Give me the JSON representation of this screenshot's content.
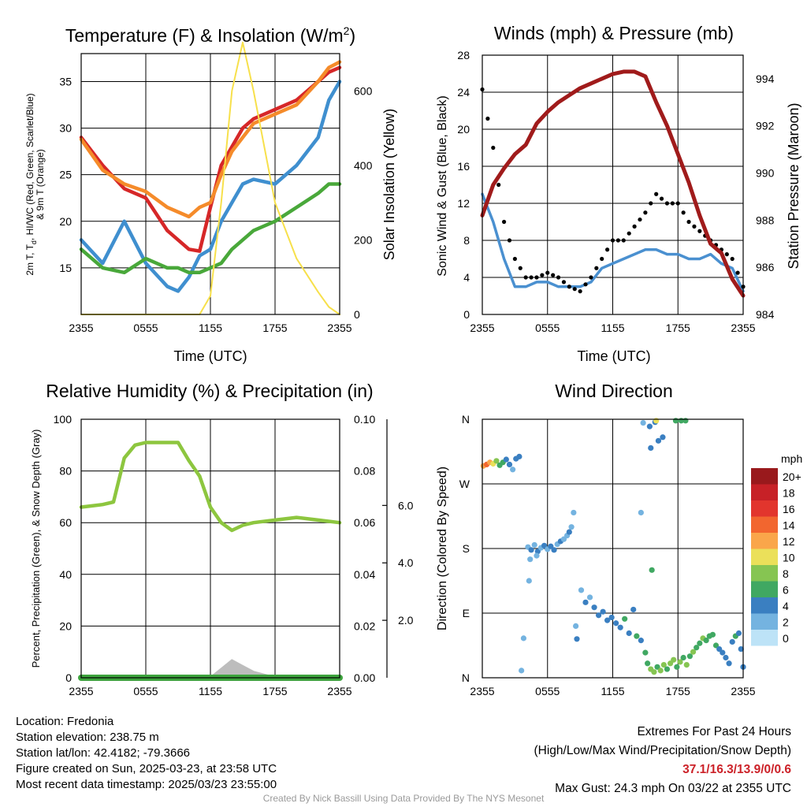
{
  "colors": {
    "temp_red": "#d62728",
    "dewpoint_green": "#49a83a",
    "windchill_blue": "#3f8fcf",
    "temp9m_orange": "#f58b2a",
    "insolation_yellow": "#f7e04b",
    "wind_blue": "#4a90d0",
    "gust_black": "#000000",
    "pressure_maroon": "#a01b1b",
    "rh_green": "#8dc63f",
    "precip_green": "#3da33d",
    "snow_gray": "#bdbdbd",
    "extremes_red": "#cc2229",
    "credit_gray": "#9a9a9a"
  },
  "chart_data": [
    {
      "type": "line",
      "id": "temperature",
      "title": "Temperature (F) & Insolation (W/m",
      "title_sup": "2",
      "title_close": ")",
      "xlabel": "Time (UTC)",
      "ylabel_lines": [
        "2m T, T",
        "d",
        ", HI/WC (Red, Green, Scarlet/Blue)",
        "& 9m T (Orange)"
      ],
      "y2label": "Solar Insolation (Yellow)",
      "xticks": [
        "2355",
        "0555",
        "1155",
        "1755",
        "2355"
      ],
      "ylim": [
        10,
        38
      ],
      "yticks": [
        15,
        20,
        25,
        30,
        35
      ],
      "y2lim": [
        0,
        700
      ],
      "y2ticks": [
        0,
        200,
        400,
        600
      ],
      "x_hours": [
        0,
        2,
        4,
        6,
        8,
        9,
        10,
        11,
        12,
        13,
        14,
        15,
        16,
        18,
        20,
        22,
        23,
        24
      ],
      "series": [
        {
          "name": "2m T",
          "color": "temp_red",
          "axis": "y",
          "values": [
            29,
            26,
            23.5,
            22.5,
            19,
            18,
            17,
            16.8,
            21.5,
            26,
            28,
            30,
            31,
            32,
            33,
            35,
            36,
            36.5
          ]
        },
        {
          "name": "9m T",
          "color": "temp9m_orange",
          "axis": "y",
          "values": [
            28.8,
            25.5,
            24,
            23.2,
            21.5,
            21,
            20.5,
            21.5,
            22,
            25,
            27.5,
            29,
            30.5,
            31.5,
            32.5,
            35,
            36.5,
            37.1
          ]
        },
        {
          "name": "HI/WC",
          "color": "windchill_blue",
          "axis": "y",
          "values": [
            18,
            15.5,
            20,
            15.5,
            13,
            12.5,
            14,
            16.3,
            17,
            20,
            22,
            24,
            24.5,
            24,
            26,
            29,
            33,
            35
          ]
        },
        {
          "name": "Td",
          "color": "dewpoint_green",
          "axis": "y",
          "values": [
            17,
            15,
            14.5,
            16,
            15,
            15,
            14.5,
            14.5,
            15,
            15.5,
            17,
            18,
            19,
            20,
            21.5,
            23,
            24,
            24
          ]
        },
        {
          "name": "Insolation",
          "color": "insolation_yellow",
          "axis": "y2",
          "values": [
            0,
            0,
            0,
            0,
            0,
            0,
            0,
            0,
            50,
            300,
            600,
            730,
            600,
            300,
            150,
            60,
            20,
            0
          ]
        }
      ]
    },
    {
      "type": "line",
      "id": "winds",
      "title": "Winds (mph) & Pressure (mb)",
      "xlabel": "Time (UTC)",
      "ylabel": "Sonic Wind & Gust (Blue, Black)",
      "y2label": "Station Pressure (Maroon)",
      "xticks": [
        "2355",
        "0555",
        "1155",
        "1755",
        "2355"
      ],
      "ylim": [
        0,
        28
      ],
      "yticks": [
        0,
        4,
        8,
        12,
        16,
        20,
        24,
        28
      ],
      "y2lim": [
        984,
        995
      ],
      "y2ticks": [
        984,
        986,
        988,
        990,
        992,
        994
      ],
      "x_hours": [
        0,
        1,
        2,
        3,
        4,
        5,
        6,
        7,
        8,
        9,
        10,
        11,
        12,
        13,
        14,
        15,
        16,
        17,
        18,
        19,
        20,
        21,
        22,
        23,
        24
      ],
      "series": [
        {
          "name": "Sonic Wind",
          "color": "wind_blue",
          "axis": "y",
          "values": [
            13,
            10,
            6,
            3,
            3,
            3.5,
            3.5,
            3,
            3,
            3,
            3.5,
            5,
            5.5,
            6,
            6.5,
            7,
            7,
            6.5,
            6.5,
            6,
            6,
            6.5,
            5.5,
            5,
            2.5
          ]
        },
        {
          "name": "Gust",
          "color": "gust_black",
          "axis": "y",
          "values": [
            24.3,
            18,
            10,
            6,
            4,
            4,
            4.5,
            4,
            3,
            2.5,
            4,
            6,
            8,
            8,
            9.5,
            11,
            13,
            12,
            12,
            10,
            9,
            8,
            7,
            6,
            3
          ]
        },
        {
          "name": "Station Pressure",
          "color": "pressure_maroon",
          "axis": "y2",
          "values": [
            988.2,
            989.5,
            990.2,
            990.8,
            991.2,
            992.1,
            992.6,
            993,
            993.3,
            993.6,
            993.8,
            994,
            994.2,
            994.3,
            994.3,
            994.1,
            993,
            992,
            990.8,
            989.6,
            988.2,
            987,
            986.6,
            985.5,
            984.8
          ]
        }
      ]
    },
    {
      "type": "line",
      "id": "humidity",
      "title": "Relative Humidity (%) & Precipitation (in)",
      "ylabel": "Percent, Precipitation (Green), & Snow Depth (Gray)",
      "xticks": [
        "2355",
        "0555",
        "1155",
        "1755",
        "2355"
      ],
      "ylim": [
        0,
        100
      ],
      "yticks": [
        0,
        20,
        40,
        60,
        80,
        100
      ],
      "y2lim": [
        0,
        0.1
      ],
      "y2ticks": [
        "0.00",
        "0.02",
        "0.04",
        "0.06",
        "0.08",
        "0.10"
      ],
      "y3lim": [
        0,
        9
      ],
      "y3ticks": [
        "2.0",
        "4.0",
        "6.0"
      ],
      "x_hours": [
        0,
        2,
        3,
        4,
        5,
        6,
        8,
        9,
        10,
        11,
        12,
        13,
        14,
        15,
        16,
        18,
        20,
        22,
        24
      ],
      "series": [
        {
          "name": "Relative Humidity",
          "color": "rh_green",
          "axis": "y",
          "values": [
            66,
            67,
            68,
            85,
            90,
            91,
            91,
            91,
            84,
            78,
            66,
            60,
            57,
            59,
            60,
            61,
            62,
            61,
            60
          ]
        },
        {
          "name": "Precipitation",
          "color": "precip_green",
          "axis": "y2",
          "values": [
            0,
            0,
            0,
            0,
            0,
            0,
            0,
            0,
            0,
            0,
            0,
            0,
            0,
            0,
            0,
            0,
            0,
            0,
            0
          ]
        },
        {
          "name": "Snow Depth",
          "color": "snow_gray",
          "axis": "y3",
          "values": [
            0,
            0,
            0,
            0,
            0,
            0,
            0,
            0,
            0,
            0,
            0,
            0.3,
            0.6,
            0.4,
            0.2,
            0,
            0,
            0,
            0
          ]
        }
      ]
    },
    {
      "type": "scatter",
      "id": "direction",
      "title": "Wind Direction",
      "ylabel": "Direction (Colored By Speed)",
      "xticks": [
        "2355",
        "0555",
        "1155",
        "1755",
        "2355"
      ],
      "yticks": [
        "N",
        "E",
        "S",
        "W",
        "N"
      ],
      "ylim": [
        0,
        360
      ],
      "legend_title": "mph",
      "legend_labels": [
        "20+",
        "18",
        "16",
        "14",
        "12",
        "10",
        "8",
        "6",
        "4",
        "2",
        "0"
      ],
      "legend_colors": [
        "#99191c",
        "#c72127",
        "#e2352d",
        "#f2662f",
        "#faa64a",
        "#ebe05a",
        "#86c552",
        "#40a862",
        "#3a7fc1",
        "#74b3e0",
        "#bde3f7"
      ],
      "points": [
        {
          "hour": 0.1,
          "dir": 295,
          "speed": 12
        },
        {
          "hour": 0.4,
          "dir": 297,
          "speed": 14
        },
        {
          "hour": 0.7,
          "dir": 300,
          "speed": 11
        },
        {
          "hour": 1.0,
          "dir": 298,
          "speed": 10
        },
        {
          "hour": 1.3,
          "dir": 302,
          "speed": 8
        },
        {
          "hour": 1.6,
          "dir": 296,
          "speed": 6
        },
        {
          "hour": 1.9,
          "dir": 300,
          "speed": 5
        },
        {
          "hour": 2.2,
          "dir": 304,
          "speed": 4
        },
        {
          "hour": 2.5,
          "dir": 297,
          "speed": 3
        },
        {
          "hour": 2.8,
          "dir": 290,
          "speed": 2
        },
        {
          "hour": 3.1,
          "dir": 305,
          "speed": 4
        },
        {
          "hour": 3.4,
          "dir": 308,
          "speed": 3
        },
        {
          "hour": 3.6,
          "dir": 10,
          "speed": 2
        },
        {
          "hour": 3.8,
          "dir": 55,
          "speed": 1
        },
        {
          "hour": 4.2,
          "dir": 182,
          "speed": 2
        },
        {
          "hour": 4.5,
          "dir": 178,
          "speed": 3
        },
        {
          "hour": 4.8,
          "dir": 185,
          "speed": 2
        },
        {
          "hour": 5.1,
          "dir": 176,
          "speed": 3
        },
        {
          "hour": 5.4,
          "dir": 181,
          "speed": 2
        },
        {
          "hour": 5.7,
          "dir": 184,
          "speed": 3
        },
        {
          "hour": 6.0,
          "dir": 179,
          "speed": 2
        },
        {
          "hour": 6.3,
          "dir": 183,
          "speed": 3
        },
        {
          "hour": 6.6,
          "dir": 178,
          "speed": 3
        },
        {
          "hour": 6.9,
          "dir": 186,
          "speed": 2
        },
        {
          "hour": 7.2,
          "dir": 190,
          "speed": 3
        },
        {
          "hour": 7.5,
          "dir": 193,
          "speed": 2
        },
        {
          "hour": 7.8,
          "dir": 198,
          "speed": 2
        },
        {
          "hour": 8.0,
          "dir": 203,
          "speed": 3
        },
        {
          "hour": 8.2,
          "dir": 210,
          "speed": 2
        },
        {
          "hour": 8.4,
          "dir": 230,
          "speed": 1
        },
        {
          "hour": 4.4,
          "dir": 165,
          "speed": 2
        },
        {
          "hour": 5.0,
          "dir": 170,
          "speed": 1
        },
        {
          "hour": 4.3,
          "dir": 135,
          "speed": 1
        },
        {
          "hour": 8.6,
          "dir": 72,
          "speed": 2
        },
        {
          "hour": 8.7,
          "dir": 54,
          "speed": 3
        },
        {
          "hour": 9.1,
          "dir": 122,
          "speed": 2
        },
        {
          "hour": 9.5,
          "dir": 105,
          "speed": 3
        },
        {
          "hour": 9.9,
          "dir": 112,
          "speed": 2
        },
        {
          "hour": 10.3,
          "dir": 98,
          "speed": 3
        },
        {
          "hour": 10.7,
          "dir": 87,
          "speed": 4
        },
        {
          "hour": 11.1,
          "dir": 92,
          "speed": 3
        },
        {
          "hour": 11.5,
          "dir": 80,
          "speed": 4
        },
        {
          "hour": 11.9,
          "dir": 84,
          "speed": 3
        },
        {
          "hour": 12.3,
          "dir": 76,
          "speed": 4
        },
        {
          "hour": 12.7,
          "dir": 70,
          "speed": 3
        },
        {
          "hour": 13.1,
          "dir": 82,
          "speed": 5
        },
        {
          "hour": 13.5,
          "dir": 62,
          "speed": 4
        },
        {
          "hour": 13.9,
          "dir": 95,
          "speed": 3
        },
        {
          "hour": 14.2,
          "dir": 58,
          "speed": 5
        },
        {
          "hour": 14.6,
          "dir": 52,
          "speed": 4
        },
        {
          "hour": 15.0,
          "dir": 35,
          "speed": 6
        },
        {
          "hour": 15.2,
          "dir": 20,
          "speed": 5
        },
        {
          "hour": 15.5,
          "dir": 12,
          "speed": 7
        },
        {
          "hour": 15.8,
          "dir": 8,
          "speed": 8
        },
        {
          "hour": 16.1,
          "dir": 15,
          "speed": 6
        },
        {
          "hour": 16.4,
          "dir": 10,
          "speed": 7
        },
        {
          "hour": 16.7,
          "dir": 18,
          "speed": 8
        },
        {
          "hour": 17.0,
          "dir": 12,
          "speed": 6
        },
        {
          "hour": 17.3,
          "dir": 20,
          "speed": 7
        },
        {
          "hour": 17.6,
          "dir": 25,
          "speed": 8
        },
        {
          "hour": 17.9,
          "dir": 15,
          "speed": 6
        },
        {
          "hour": 18.2,
          "dir": 22,
          "speed": 7
        },
        {
          "hour": 18.5,
          "dir": 28,
          "speed": 6
        },
        {
          "hour": 18.8,
          "dir": 18,
          "speed": 7
        },
        {
          "hour": 19.1,
          "dir": 30,
          "speed": 6
        },
        {
          "hour": 19.4,
          "dir": 36,
          "speed": 7
        },
        {
          "hour": 19.7,
          "dir": 42,
          "speed": 6
        },
        {
          "hour": 20.0,
          "dir": 48,
          "speed": 6
        },
        {
          "hour": 20.3,
          "dir": 55,
          "speed": 7
        },
        {
          "hour": 20.6,
          "dir": 52,
          "speed": 6
        },
        {
          "hour": 20.9,
          "dir": 58,
          "speed": 6
        },
        {
          "hour": 21.2,
          "dir": 60,
          "speed": 6
        },
        {
          "hour": 21.5,
          "dir": 45,
          "speed": 5
        },
        {
          "hour": 21.8,
          "dir": 40,
          "speed": 4
        },
        {
          "hour": 22.1,
          "dir": 35,
          "speed": 3
        },
        {
          "hour": 22.4,
          "dir": 28,
          "speed": 3
        },
        {
          "hour": 22.7,
          "dir": 20,
          "speed": 4
        },
        {
          "hour": 23.0,
          "dir": 50,
          "speed": 4
        },
        {
          "hour": 23.3,
          "dir": 58,
          "speed": 5
        },
        {
          "hour": 23.6,
          "dir": 62,
          "speed": 4
        },
        {
          "hour": 23.8,
          "dir": 40,
          "speed": 3
        },
        {
          "hour": 24.0,
          "dir": 15,
          "speed": 3
        },
        {
          "hour": 14.8,
          "dir": 355,
          "speed": 2
        },
        {
          "hour": 15.4,
          "dir": 350,
          "speed": 3
        },
        {
          "hour": 15.9,
          "dir": 356,
          "speed": 4
        },
        {
          "hour": 16.2,
          "dir": 330,
          "speed": 3
        },
        {
          "hour": 15.5,
          "dir": 320,
          "speed": 4
        },
        {
          "hour": 17.8,
          "dir": 358,
          "speed": 6
        },
        {
          "hour": 18.3,
          "dir": 358,
          "speed": 6
        },
        {
          "hour": 18.7,
          "dir": 358,
          "speed": 5
        },
        {
          "hour": 16.0,
          "dir": 358,
          "speed": 10
        },
        {
          "hour": 14.6,
          "dir": 230,
          "speed": 2
        },
        {
          "hour": 15.6,
          "dir": 150,
          "speed": 5
        },
        {
          "hour": 16.6,
          "dir": 335,
          "speed": 3
        }
      ]
    }
  ],
  "info_left": {
    "location": "Location: Fredonia",
    "elevation": "Station elevation: 238.75 m",
    "latlon": "Station lat/lon: 42.4182; -79.3666",
    "created": "Figure created on Sun, 2025-03-23, at 23:58 UTC",
    "recent": "Most recent data timestamp: 2025/03/23 23:55:00"
  },
  "info_right": {
    "heading": "Extremes For Past 24 Hours",
    "subheading": "(High/Low/Max Wind/Precipitation/Snow Depth)",
    "values": "37.1/16.3/13.9/0/0.6",
    "gust": "Max Gust: 24.3 mph On 03/22 at 2355 UTC"
  },
  "credit": "Created By Nick Bassill Using Data Provided By The NYS Mesonet"
}
